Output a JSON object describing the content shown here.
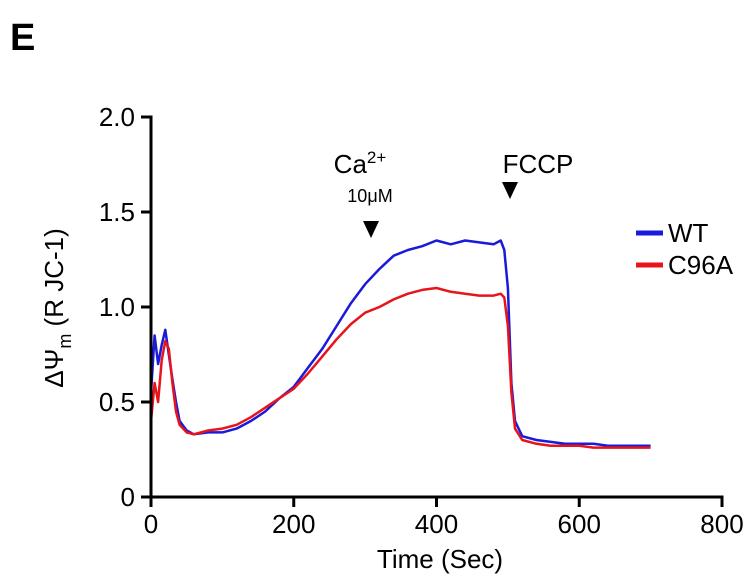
{
  "panel_label": "E",
  "chart_data": {
    "type": "line",
    "xlabel": "Time (Sec)",
    "ylabel": {
      "prefix": "ΔΨ",
      "subscript": "m",
      "suffix": " (R JC-1)"
    },
    "xlim": [
      0,
      800
    ],
    "ylim": [
      0,
      2.0
    ],
    "xticks": [
      0,
      200,
      400,
      600,
      800
    ],
    "xtick_labels": [
      "0",
      "200",
      "400",
      "600",
      "800"
    ],
    "yticks": [
      0,
      0.5,
      1.0,
      1.5,
      2.0
    ],
    "ytick_labels": [
      "0",
      "0.5",
      "1.0",
      "1.5",
      "2.0"
    ],
    "grid": false,
    "legend_position": "right",
    "series": [
      {
        "name": "WT",
        "color": "#1a1adb",
        "x": [
          0,
          5,
          10,
          15,
          20,
          25,
          30,
          35,
          40,
          50,
          60,
          80,
          100,
          120,
          140,
          160,
          180,
          200,
          220,
          240,
          260,
          280,
          300,
          320,
          340,
          360,
          380,
          400,
          420,
          440,
          460,
          480,
          490,
          495,
          500,
          505,
          510,
          520,
          540,
          560,
          580,
          600,
          620,
          640,
          660,
          680,
          700
        ],
        "y": [
          0.55,
          0.85,
          0.7,
          0.8,
          0.88,
          0.75,
          0.62,
          0.5,
          0.4,
          0.35,
          0.33,
          0.34,
          0.34,
          0.36,
          0.4,
          0.45,
          0.52,
          0.58,
          0.68,
          0.78,
          0.9,
          1.02,
          1.12,
          1.2,
          1.27,
          1.3,
          1.32,
          1.35,
          1.33,
          1.35,
          1.34,
          1.33,
          1.35,
          1.3,
          1.1,
          0.6,
          0.4,
          0.32,
          0.3,
          0.29,
          0.28,
          0.28,
          0.28,
          0.27,
          0.27,
          0.27,
          0.27
        ]
      },
      {
        "name": "C96A",
        "color": "#e8141b",
        "x": [
          0,
          5,
          10,
          15,
          20,
          25,
          30,
          35,
          40,
          50,
          60,
          80,
          100,
          120,
          140,
          160,
          180,
          200,
          220,
          240,
          260,
          280,
          300,
          320,
          340,
          360,
          380,
          400,
          420,
          440,
          460,
          480,
          490,
          495,
          500,
          505,
          510,
          520,
          540,
          560,
          580,
          600,
          620,
          640,
          660,
          680,
          700
        ],
        "y": [
          0.4,
          0.6,
          0.5,
          0.72,
          0.82,
          0.78,
          0.6,
          0.45,
          0.38,
          0.34,
          0.33,
          0.35,
          0.36,
          0.38,
          0.42,
          0.47,
          0.52,
          0.57,
          0.65,
          0.74,
          0.83,
          0.91,
          0.97,
          1.0,
          1.04,
          1.07,
          1.09,
          1.1,
          1.08,
          1.07,
          1.06,
          1.06,
          1.07,
          1.05,
          0.9,
          0.55,
          0.36,
          0.3,
          0.28,
          0.27,
          0.27,
          0.27,
          0.26,
          0.26,
          0.26,
          0.26,
          0.26
        ]
      }
    ],
    "annotations": [
      {
        "id": "ca",
        "text_main": "Ca",
        "text_sup": "2+",
        "text_sub": "10μM",
        "x": 305
      },
      {
        "id": "fccp",
        "text": "FCCP",
        "x": 505
      }
    ]
  }
}
